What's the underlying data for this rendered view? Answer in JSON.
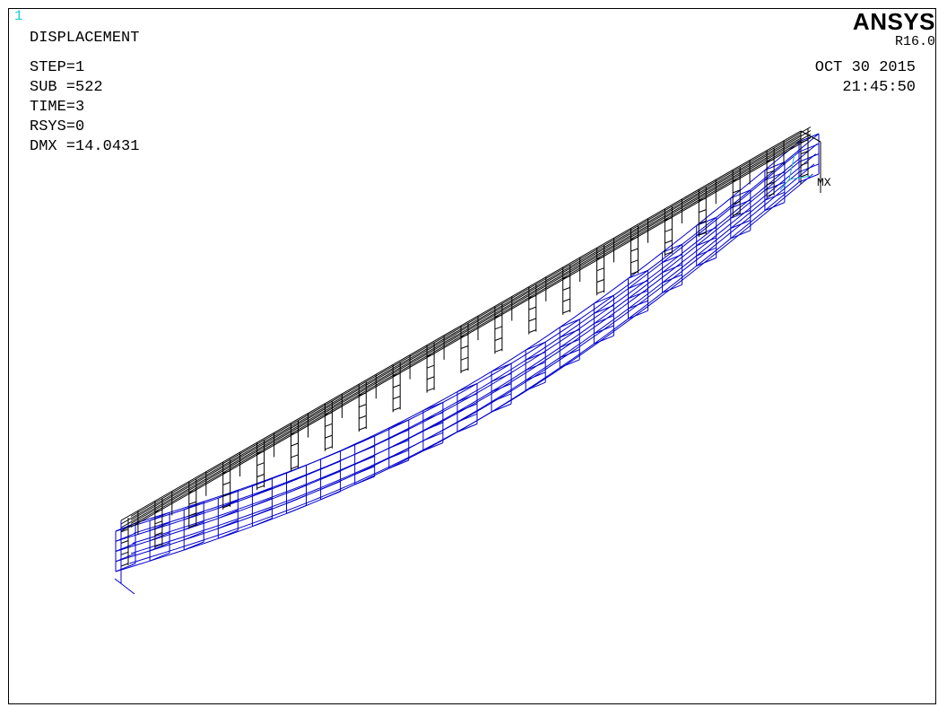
{
  "window_number": "1",
  "result_title": "DISPLACEMENT",
  "info": {
    "step": "STEP=1",
    "sub": "SUB =522",
    "time": "TIME=3",
    "rsys": "RSYS=0",
    "dmx": "DMX =14.0431"
  },
  "brand": "ANSYS",
  "version": "R16.0",
  "date": "OCT 30 2015",
  "clock": "21:45:50",
  "max_marker": "MX",
  "colors": {
    "undeformed": "#000000",
    "deformed": "#0000cc",
    "window_number": "#1ad1d9",
    "triad": "#2bb5c0"
  },
  "model": {
    "type": "beam wireframe",
    "stiffener_count": 20
  }
}
